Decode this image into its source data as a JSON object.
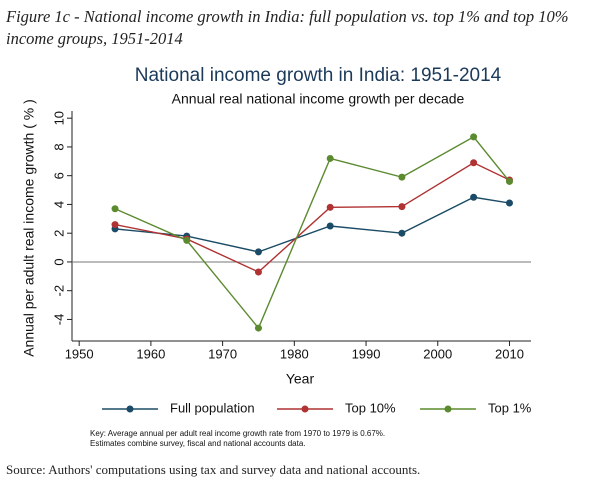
{
  "figure_caption": "Figure 1c - National income growth in India: full population vs. top 1% and top 10% income groups, 1951-2014",
  "source": "Source: Authors' computations using tax and survey data and national accounts.",
  "chart_data": {
    "type": "line",
    "title": "National income growth in India: 1951-2014",
    "subtitle": "Annual real national income growth per decade",
    "x_label": "Year",
    "y_label": "Annual per adult real income growth ( % )",
    "x": [
      1955,
      1965,
      1975,
      1985,
      1995,
      2005,
      2010
    ],
    "series": [
      {
        "name": "Full population",
        "color": "#1b4b66",
        "values": [
          2.3,
          1.8,
          0.7,
          2.5,
          2.0,
          4.5,
          4.1
        ]
      },
      {
        "name": "Top 10%",
        "color": "#b03232",
        "values": [
          2.6,
          1.6,
          -0.7,
          3.8,
          3.85,
          6.9,
          5.7
        ]
      },
      {
        "name": "Top 1%",
        "color": "#5b8a2f",
        "values": [
          3.7,
          1.5,
          -4.6,
          7.2,
          5.9,
          8.7,
          5.6
        ]
      }
    ],
    "xlim": [
      1949,
      2013
    ],
    "xticks": [
      1950,
      1960,
      1970,
      1980,
      1990,
      2000,
      2010
    ],
    "ylim": [
      -5.5,
      10.5
    ],
    "yticks": [
      -4,
      -2,
      0,
      2,
      4,
      6,
      8,
      10
    ],
    "reference_line": 0,
    "legend": "bottom",
    "notes": [
      "Key: Average annual per adult real income growth rate from 1970 to 1979 is 0.67%.",
      "Estimates combine survey, fiscal and national accounts data."
    ]
  }
}
